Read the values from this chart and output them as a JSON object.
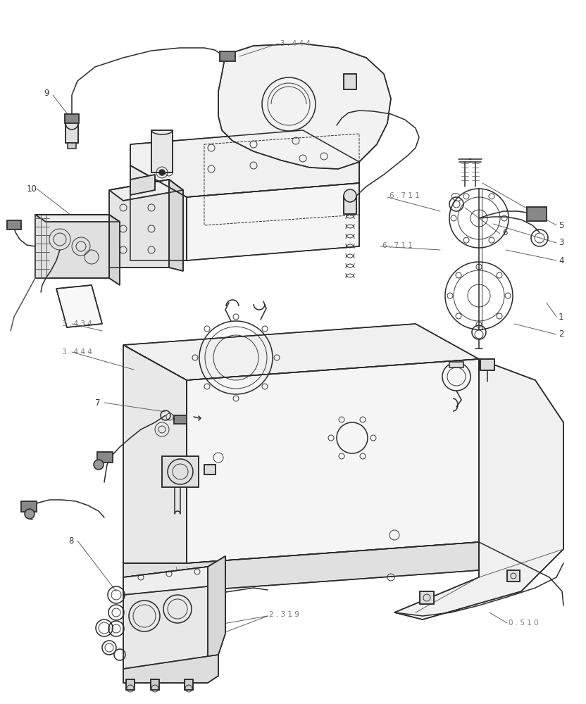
{
  "bg_color": "#ffffff",
  "lc": "#2a2a2a",
  "lc_light": "#555555",
  "lc_ref": "#777777",
  "lw_main": 1.1,
  "lw_thin": 0.65,
  "lw_label": 0.6,
  "label_fs": 8.5,
  "ref_fs": 7.5,
  "figsize": [
    8.32,
    10.0
  ],
  "dpi": 100
}
